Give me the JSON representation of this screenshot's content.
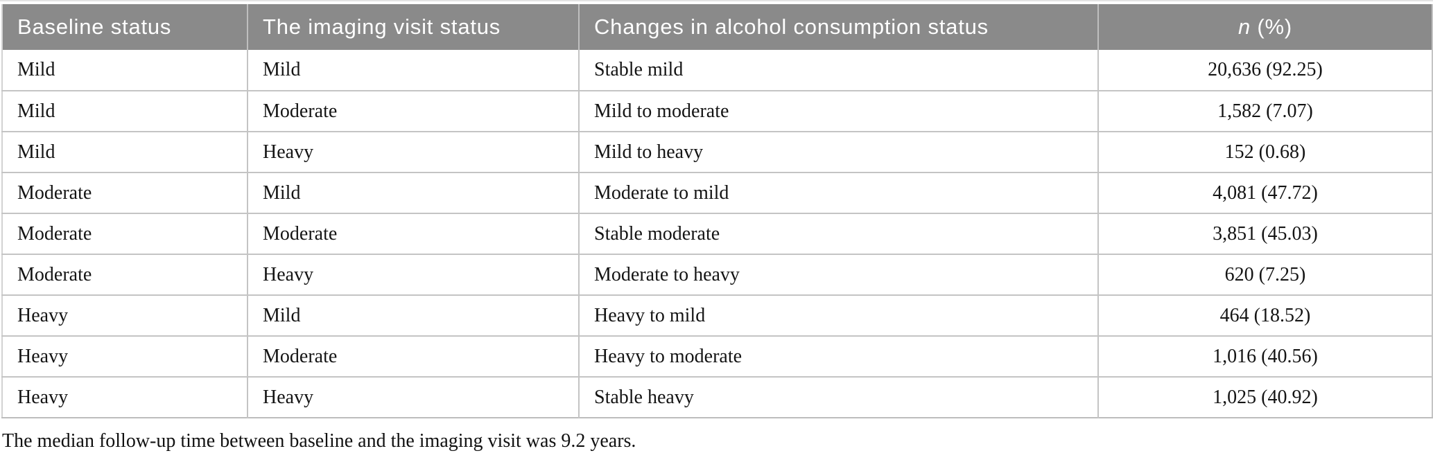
{
  "table": {
    "header": {
      "baseline": "Baseline status",
      "imaging": "The imaging visit status",
      "changes": "Changes in alcohol consumption status",
      "n_italic": "n",
      "n_rest": "(%)"
    },
    "rows": [
      {
        "baseline": "Mild",
        "imaging": "Mild",
        "change": "Stable mild",
        "n": "20,636 (92.25)"
      },
      {
        "baseline": "Mild",
        "imaging": "Moderate",
        "change": "Mild to moderate",
        "n": "1,582 (7.07)"
      },
      {
        "baseline": "Mild",
        "imaging": "Heavy",
        "change": "Mild to heavy",
        "n": "152 (0.68)"
      },
      {
        "baseline": "Moderate",
        "imaging": "Mild",
        "change": "Moderate to mild",
        "n": "4,081 (47.72)"
      },
      {
        "baseline": "Moderate",
        "imaging": "Moderate",
        "change": "Stable moderate",
        "n": "3,851 (45.03)"
      },
      {
        "baseline": "Moderate",
        "imaging": "Heavy",
        "change": "Moderate to heavy",
        "n": "620 (7.25)"
      },
      {
        "baseline": "Heavy",
        "imaging": "Mild",
        "change": "Heavy to mild",
        "n": "464 (18.52)"
      },
      {
        "baseline": "Heavy",
        "imaging": "Moderate",
        "change": "Heavy to moderate",
        "n": "1,016 (40.56)"
      },
      {
        "baseline": "Heavy",
        "imaging": "Heavy",
        "change": "Stable heavy",
        "n": "1,025 (40.92)"
      }
    ],
    "footnote": "The median follow-up time between baseline and the imaging visit was 9.2 years."
  },
  "colors": {
    "header_bg": "#8a8a8a",
    "header_text": "#ffffff",
    "border": "#c4c4c4",
    "body_text": "#141414"
  }
}
